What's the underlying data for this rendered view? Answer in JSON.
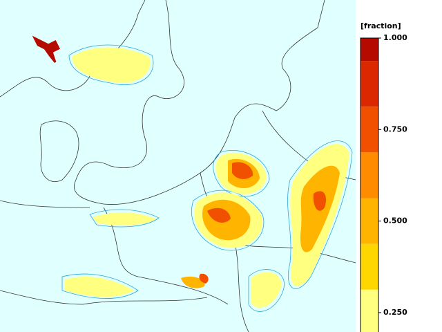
{
  "colorbar": {
    "title": "[fraction]",
    "lim": [
      0.1875,
      1.0
    ],
    "bounds": [
      1.0,
      0.9375,
      0.8125,
      0.6875,
      0.5625,
      0.4375,
      0.3125,
      0.1875
    ],
    "colors": [
      "#b40a00",
      "#dc2800",
      "#f05000",
      "#ff8c00",
      "#ffb400",
      "#ffd700",
      "#ffff80"
    ],
    "ticks": [
      {
        "value": 1.0,
        "label": "1.000"
      },
      {
        "value": 0.75,
        "label": "0.750"
      },
      {
        "value": 0.5,
        "label": "0.500"
      },
      {
        "value": 0.25,
        "label": "0.250"
      }
    ]
  }
}
